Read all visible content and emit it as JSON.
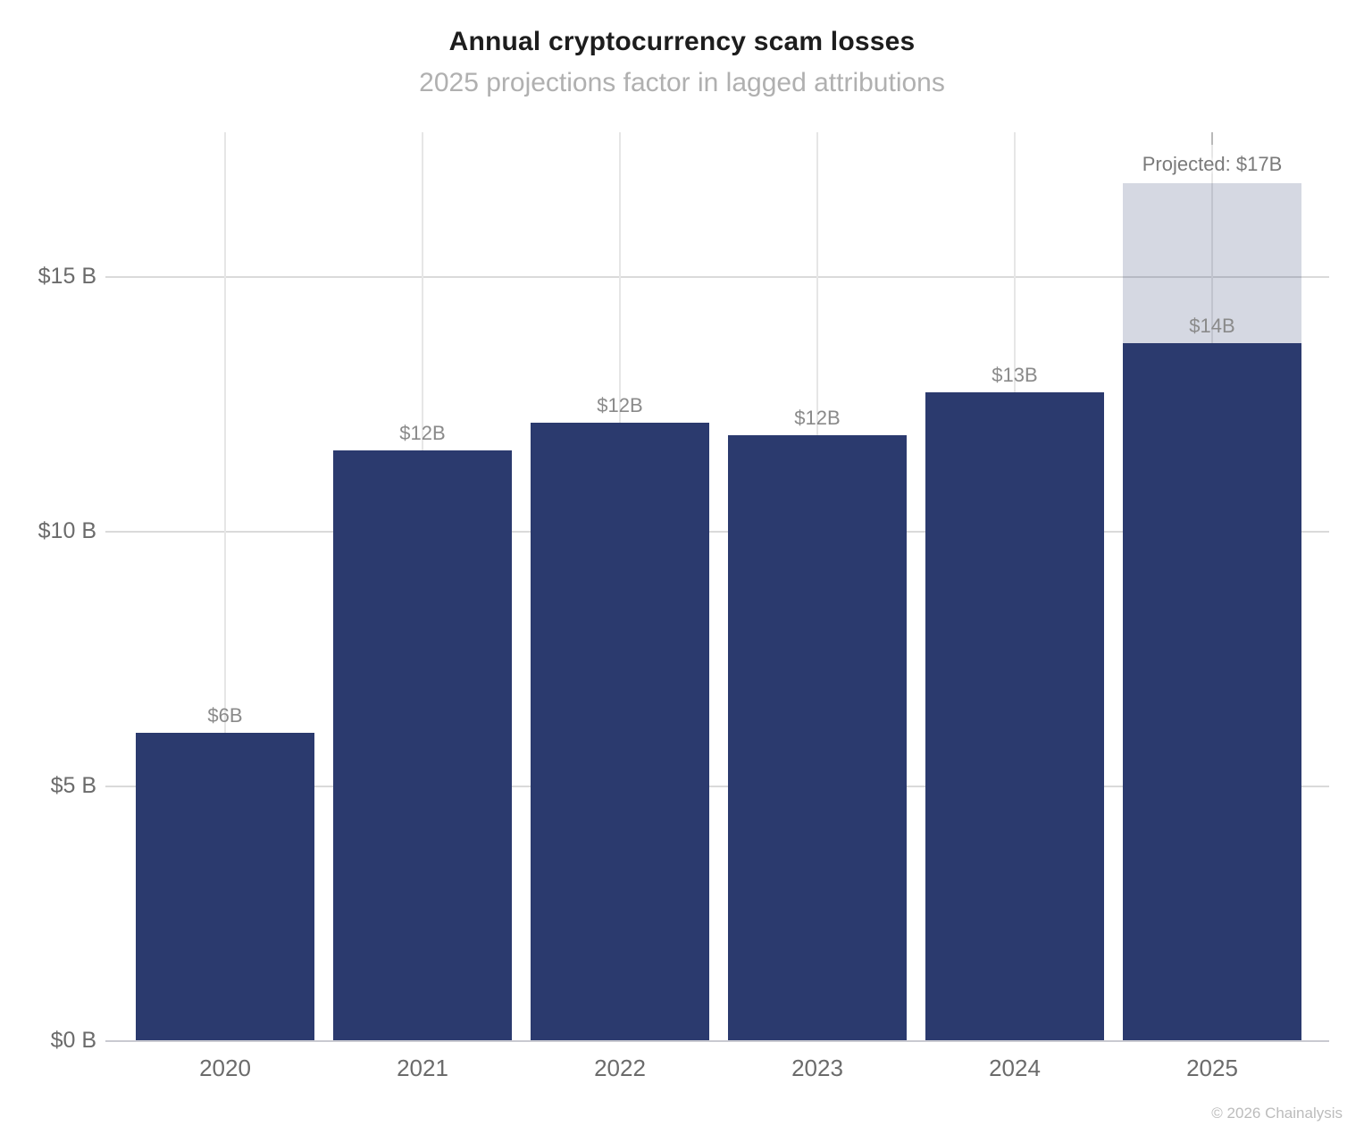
{
  "title": "Annual cryptocurrency scam losses",
  "subtitle": "2025 projections factor in lagged attributions",
  "footer": "© 2026 Chainalysis",
  "colors": {
    "bar": "#2b3a6e",
    "projected_bar_overlay": "#d5d8e2",
    "gridline": "#dadada",
    "baseline": "#c9cad1",
    "title_text": "#1d1d1d",
    "subtitle_text": "#b0b0b0",
    "axis_text": "#6b6b6b",
    "value_label_text": "#8a8a8a"
  },
  "chart_data": {
    "type": "bar",
    "title": "Annual cryptocurrency scam losses",
    "subtitle": "2025 projections factor in lagged attributions",
    "categories": [
      "2020",
      "2021",
      "2022",
      "2023",
      "2024",
      "2025"
    ],
    "values_billions": [
      6.05,
      11.6,
      12.15,
      11.9,
      12.75,
      13.7
    ],
    "bar_labels": [
      "$6B",
      "$12B",
      "$12B",
      "$12B",
      "$13B",
      "$14B"
    ],
    "projected_total_billions_2025": 16.85,
    "projected_annotation": "Projected: $17B",
    "xlabel": "",
    "ylabel": "",
    "ylim": [
      0,
      17.85
    ],
    "yticks": [
      {
        "value": 0,
        "label": "$0 B"
      },
      {
        "value": 5,
        "label": "$5 B"
      },
      {
        "value": 10,
        "label": "$10 B"
      },
      {
        "value": 15,
        "label": "$15 B"
      }
    ],
    "grid": true,
    "legend": false
  }
}
